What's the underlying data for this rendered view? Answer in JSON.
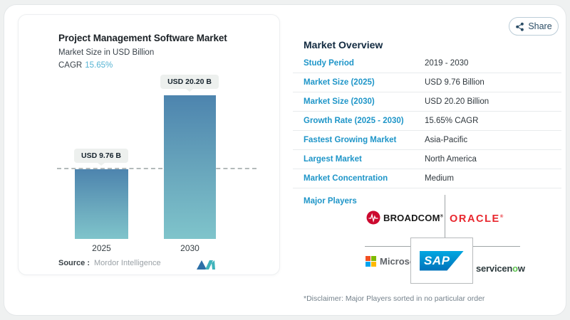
{
  "share": {
    "label": "Share"
  },
  "chart": {
    "title": "Project Management Software Market",
    "subtitle": "Market Size in USD Billion",
    "cagr_label": "CAGR",
    "cagr_value": "15.65%",
    "source_label": "Source :",
    "source_brand": "Mordor Intelligence"
  },
  "chart_data": {
    "type": "bar",
    "categories": [
      "2025",
      "2030"
    ],
    "values": [
      9.76,
      20.2
    ],
    "value_labels": [
      "USD 9.76 B",
      "USD 20.20 B"
    ],
    "title": "Project Management Software Market",
    "xlabel": "",
    "ylabel": "Market Size in USD Billion",
    "reference_line": 9.76,
    "ylim": [
      0,
      22.9
    ],
    "grid": false,
    "legend": "none",
    "bar_gradient_top": "#4d84ae",
    "bar_gradient_bottom": "#7fc4cb"
  },
  "overview": {
    "title": "Market Overview",
    "rows": [
      {
        "label": "Study Period",
        "value": "2019 - 2030"
      },
      {
        "label": "Market Size (2025)",
        "value": "USD 9.76 Billion"
      },
      {
        "label": "Market Size (2030)",
        "value": "USD 20.20 Billion"
      },
      {
        "label": "Growth Rate (2025 - 2030)",
        "value": "15.65% CAGR"
      },
      {
        "label": "Fastest Growing Market",
        "value": "Asia-Pacific"
      },
      {
        "label": "Largest Market",
        "value": "North America"
      },
      {
        "label": "Market Concentration",
        "value": "Medium"
      }
    ],
    "major_players_label": "Major Players",
    "logos": {
      "broadcom": "BROADCOM",
      "oracle": "ORACLE",
      "sap": "SAP",
      "microsoft": "Microsoft",
      "servicenow_pre": "servicen",
      "servicenow_o": "o",
      "servicenow_post": "w",
      "reg_mark": "®"
    },
    "disclaimer": "*Disclaimer: Major Players sorted in no particular order"
  },
  "colors": {
    "accent_label_blue": "#1e95c8",
    "cagr_teal": "#56b3d2",
    "bar_top": "#4d84ae",
    "bar_bottom": "#7fc4cb",
    "title_navy": "#122a40",
    "broadcom_red": "#cc092f",
    "oracle_red": "#e8262d",
    "sap_blue_top": "#00a7e1",
    "sap_blue_bottom": "#0072ba",
    "servicenow_green": "#5bc14d",
    "ms_red": "#f25022",
    "ms_green": "#7fba00",
    "ms_blue": "#00a4ef",
    "ms_yellow": "#ffb900"
  }
}
